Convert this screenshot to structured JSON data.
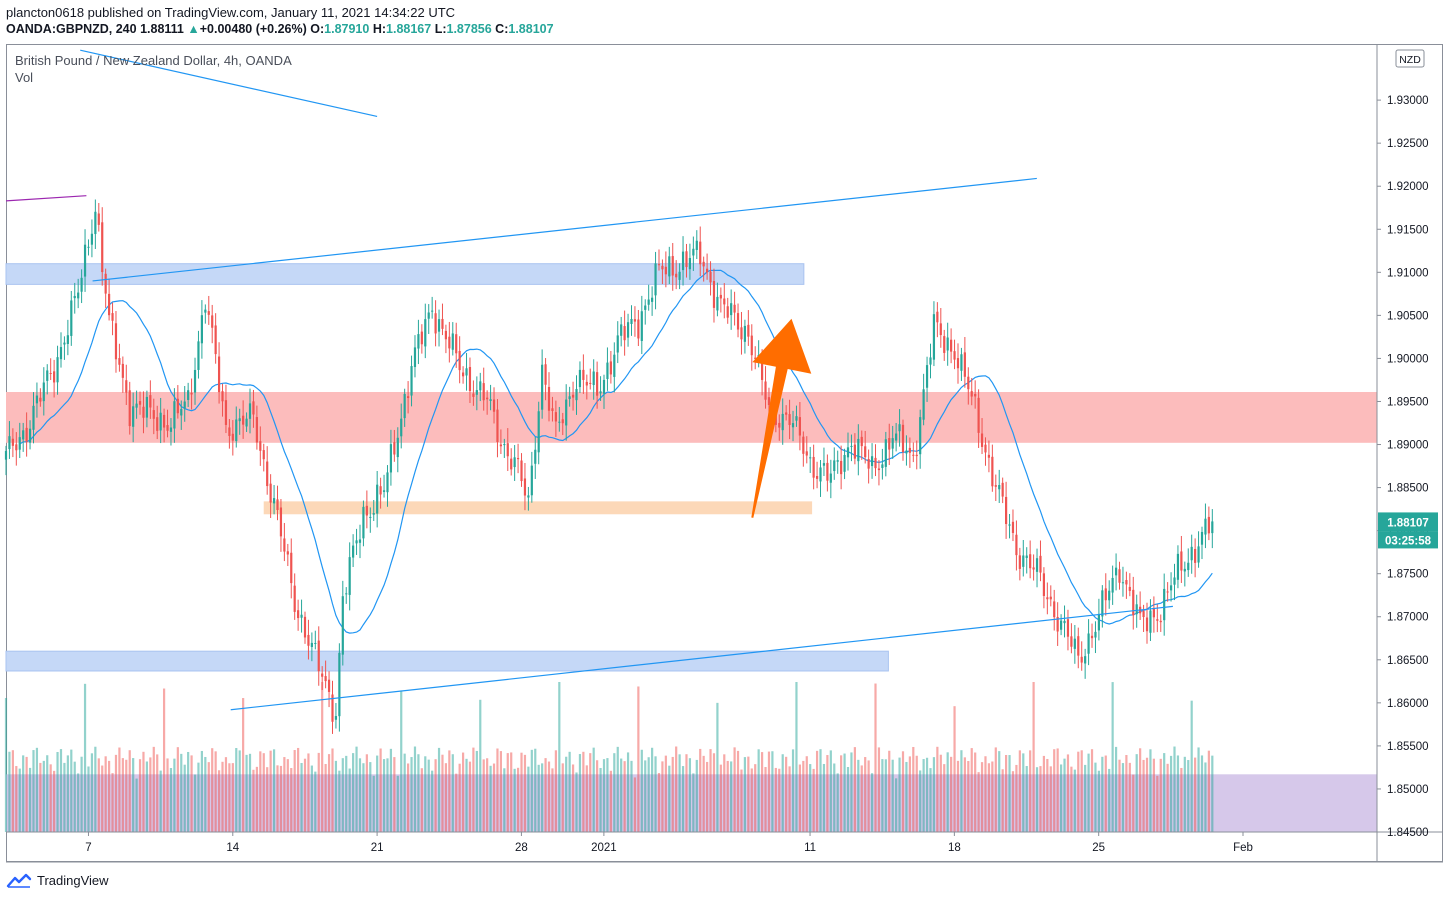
{
  "header": {
    "publisher_line": "plancton0618 published on TradingView.com, January 11, 2021 14:34:22 UTC",
    "symbol": "OANDA:GBPNZD, 240",
    "last": "1.88111",
    "change": "+0.00480 (+0.26%)",
    "o_label": "O:",
    "o_value": "1.87910",
    "h_label": "H:",
    "h_value": "1.88167",
    "l_label": "L:",
    "l_value": "1.87856",
    "c_label": "C:",
    "c_value": "1.88107"
  },
  "legend": {
    "title": "British Pound / New Zealand Dollar, 4h, OANDA",
    "volume_label": "Vol"
  },
  "price_axis": {
    "currency_badge": "NZD",
    "current_price": "1.88107",
    "countdown": "03:25:58"
  },
  "footer": {
    "brand": "TradingView"
  },
  "colors": {
    "up": "#26a69a",
    "down": "#ef5350",
    "ma": "#2196f3",
    "trendline": "#2196f3",
    "blue_zone": "#c5d8f7",
    "red_zone": "#fcbcbc",
    "orange_zone": "#fcd8b8",
    "purple_zone": "#d6c8ea",
    "arrow": "#ff6d00",
    "price_badge": "#26a69a"
  },
  "chart_data": {
    "type": "candlestick",
    "title": "British Pound / New Zealand Dollar, 4h, OANDA",
    "ylim": [
      1.845,
      1.9364
    ],
    "y_ticks": [
      1.845,
      1.85,
      1.855,
      1.86,
      1.865,
      1.87,
      1.875,
      1.88,
      1.885,
      1.89,
      1.895,
      1.9,
      1.905,
      1.91,
      1.915,
      1.92,
      1.925,
      1.93
    ],
    "y_tick_labels": [
      "1.84500",
      "1.85000",
      "1.85500",
      "1.86000",
      "1.86500",
      "1.87000",
      "1.87500",
      "1.88000",
      "1.88500",
      "1.89000",
      "1.89500",
      "1.90000",
      "1.90500",
      "1.91000",
      "1.91500",
      "1.92000",
      "1.92500",
      "1.93000"
    ],
    "x_ticks": [
      {
        "label": "7",
        "day": 7
      },
      {
        "label": "14",
        "day": 14
      },
      {
        "label": "21",
        "day": 21
      },
      {
        "label": "28",
        "day": 28
      },
      {
        "label": "2021",
        "day": 32
      },
      {
        "label": "11",
        "day": 42
      },
      {
        "label": "18",
        "day": 49
      },
      {
        "label": "25",
        "day": 56
      },
      {
        "label": "Feb",
        "day": 63
      }
    ],
    "x_day_start": 3,
    "x_day_end": 69.5,
    "series_anchor": {
      "day": 3,
      "price": 1.8885
    },
    "candle_step_days": 0.1667,
    "anchors": [
      [
        0,
        1.8885
      ],
      [
        6,
        1.892
      ],
      [
        14,
        1.899
      ],
      [
        21,
        1.9075
      ],
      [
        26,
        1.918
      ],
      [
        30,
        1.904
      ],
      [
        36,
        1.8945
      ],
      [
        48,
        1.8925
      ],
      [
        53,
        1.895
      ],
      [
        58,
        1.907
      ],
      [
        64,
        1.892
      ],
      [
        72,
        1.893
      ],
      [
        78,
        1.883
      ],
      [
        84,
        1.872
      ],
      [
        90,
        1.865
      ],
      [
        96,
        1.859
      ],
      [
        98,
        1.872
      ],
      [
        104,
        1.882
      ],
      [
        110,
        1.8845
      ],
      [
        118,
        1.899
      ],
      [
        124,
        1.906
      ],
      [
        132,
        1.899
      ],
      [
        140,
        1.895
      ],
      [
        144,
        1.8905
      ],
      [
        148,
        1.888
      ],
      [
        152,
        1.883
      ],
      [
        156,
        1.899
      ],
      [
        160,
        1.891
      ],
      [
        166,
        1.898
      ],
      [
        172,
        1.896
      ],
      [
        178,
        1.902
      ],
      [
        184,
        1.9045
      ],
      [
        190,
        1.91
      ],
      [
        196,
        1.911
      ],
      [
        202,
        1.912
      ],
      [
        208,
        1.906
      ],
      [
        216,
        1.903
      ],
      [
        222,
        1.894
      ],
      [
        228,
        1.893
      ],
      [
        234,
        1.888
      ],
      [
        240,
        1.886
      ],
      [
        246,
        1.8905
      ],
      [
        252,
        1.887
      ],
      [
        258,
        1.891
      ],
      [
        264,
        1.8885
      ],
      [
        270,
        1.9035
      ],
      [
        276,
        1.901
      ],
      [
        282,
        1.894
      ],
      [
        288,
        1.885
      ],
      [
        294,
        1.878
      ],
      [
        300,
        1.875
      ],
      [
        306,
        1.87
      ],
      [
        312,
        1.865
      ],
      [
        318,
        1.87
      ],
      [
        324,
        1.876
      ],
      [
        330,
        1.869
      ],
      [
        336,
        1.871
      ],
      [
        342,
        1.876
      ],
      [
        348,
        1.879
      ],
      [
        351,
        1.8811
      ]
    ],
    "zones": [
      {
        "name": "upper-blue-zone",
        "from_day": 3,
        "to_day": 41.7,
        "low": 1.9086,
        "high": 1.911,
        "color": "#c5d8f7"
      },
      {
        "name": "red-resistance-zone",
        "from_day": 3,
        "to_day": 69.5,
        "low": 1.8902,
        "high": 1.8961,
        "color": "#fcbcbc"
      },
      {
        "name": "orange-zone",
        "from_day": 15.5,
        "to_day": 42.1,
        "low": 1.8819,
        "high": 1.8834,
        "color": "#fcd8b8"
      },
      {
        "name": "lower-blue-zone",
        "from_day": 3,
        "to_day": 45.8,
        "low": 1.8637,
        "high": 1.866,
        "color": "#c5d8f7"
      },
      {
        "name": "volume-purple-zone",
        "from_day": 3,
        "to_day": 69.5,
        "low": 1.845,
        "high": 1.8517,
        "color": "#d6c8ea"
      }
    ],
    "trendlines": [
      {
        "name": "upper-trendline",
        "from": [
          7.2,
          1.909
        ],
        "to": [
          53.0,
          1.9209
        ],
        "color": "#2196f3"
      },
      {
        "name": "lower-trendline",
        "from": [
          13.9,
          1.8592
        ],
        "to": [
          59.6,
          1.8712
        ],
        "color": "#2196f3"
      },
      {
        "name": "descending-line",
        "from": [
          6.6,
          1.9358
        ],
        "to": [
          21.0,
          1.9281
        ],
        "color": "#2196f3"
      },
      {
        "name": "purple-line",
        "from": [
          3.0,
          1.9183
        ],
        "to": [
          6.9,
          1.9189
        ],
        "color": "#9c27b0"
      }
    ],
    "arrow": {
      "from": [
        39.2,
        1.8815
      ],
      "to": [
        41.1,
        1.9046
      ],
      "color": "#ff6d00"
    }
  }
}
